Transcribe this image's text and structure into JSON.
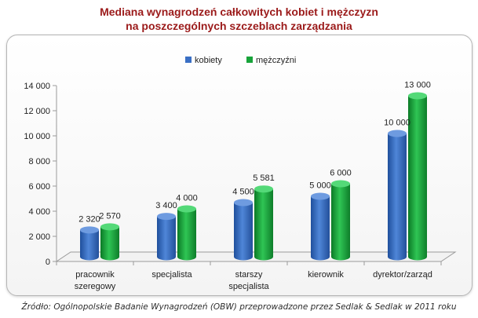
{
  "title": {
    "line1": "Mediana wynagrodzeń całkowitych kobiet i mężczyzn",
    "line2": "na poszczególnych szczeblach zarządzania"
  },
  "source": "Źródło: Ogólnopolskie Badanie Wynagrodzeń (OBW) przeprowadzone przez Sedlak & Sedlak w 2011 roku",
  "chart_data": {
    "type": "bar",
    "title": "Mediana wynagrodzeń całkowitych kobiet i mężczyzn na poszczególnych szczeblach zarządzania",
    "categories": [
      [
        "pracownik",
        "szeregowy"
      ],
      [
        "specjalista"
      ],
      [
        "starszy",
        "specjalista"
      ],
      [
        "kierownik"
      ],
      [
        "dyrektor/zarząd"
      ]
    ],
    "series": [
      {
        "name": "kobiety",
        "values": [
          2320,
          3400,
          4500,
          5000,
          10000
        ],
        "labels": [
          "2 320",
          "3 400",
          "4 500",
          "5 000",
          "10 000"
        ],
        "color": "#3a6fc4"
      },
      {
        "name": "mężczyźni",
        "values": [
          2570,
          4000,
          5581,
          6000,
          13000
        ],
        "labels": [
          "2 570",
          "4 000",
          "5 581",
          "6 000",
          "13 000"
        ],
        "color": "#18a33a"
      }
    ],
    "yticks": [
      0,
      2000,
      4000,
      6000,
      8000,
      10000,
      12000,
      14000
    ],
    "ytick_labels": [
      "0",
      "2 000",
      "4 000",
      "6 000",
      "8 000",
      "10 000",
      "12 000",
      "14 000"
    ],
    "ylim": [
      0,
      14000
    ],
    "legend_position": "top-center",
    "xlabel": "",
    "ylabel": ""
  }
}
